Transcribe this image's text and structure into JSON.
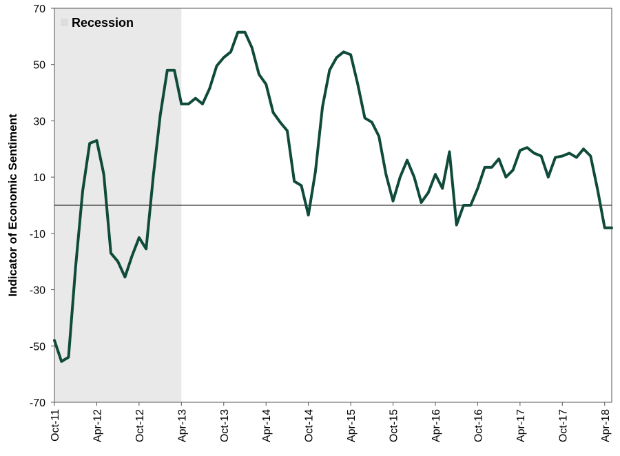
{
  "chart_data": {
    "type": "line",
    "ylabel": "Indicator of Economic Sentiment",
    "xlabel": "",
    "ylim": [
      -70,
      70
    ],
    "yticks": [
      -70,
      -50,
      -30,
      -10,
      10,
      30,
      50,
      70
    ],
    "x_tick_labels": [
      "Oct-11",
      "Apr-12",
      "Oct-12",
      "Apr-13",
      "Oct-13",
      "Apr-14",
      "Oct-14",
      "Apr-15",
      "Oct-15",
      "Apr-16",
      "Oct-16",
      "Apr-17",
      "Oct-17",
      "Apr-18"
    ],
    "x": [
      "Oct-11",
      "Nov-11",
      "Dec-11",
      "Jan-12",
      "Feb-12",
      "Mar-12",
      "Apr-12",
      "May-12",
      "Jun-12",
      "Jul-12",
      "Aug-12",
      "Sep-12",
      "Oct-12",
      "Nov-12",
      "Dec-12",
      "Jan-13",
      "Feb-13",
      "Mar-13",
      "Apr-13",
      "May-13",
      "Jun-13",
      "Jul-13",
      "Aug-13",
      "Sep-13",
      "Oct-13",
      "Nov-13",
      "Dec-13",
      "Jan-14",
      "Feb-14",
      "Mar-14",
      "Apr-14",
      "May-14",
      "Jun-14",
      "Jul-14",
      "Aug-14",
      "Sep-14",
      "Oct-14",
      "Nov-14",
      "Dec-14",
      "Jan-15",
      "Feb-15",
      "Mar-15",
      "Apr-15",
      "May-15",
      "Jun-15",
      "Jul-15",
      "Aug-15",
      "Sep-15",
      "Oct-15",
      "Nov-15",
      "Dec-15",
      "Jan-16",
      "Feb-16",
      "Mar-16",
      "Apr-16",
      "May-16",
      "Jun-16",
      "Jul-16",
      "Aug-16",
      "Sep-16",
      "Oct-16",
      "Nov-16",
      "Dec-16",
      "Jan-17",
      "Feb-17",
      "Mar-17",
      "Apr-17",
      "May-17",
      "Jun-17",
      "Jul-17",
      "Aug-17",
      "Sep-17",
      "Oct-17",
      "Nov-17",
      "Dec-17",
      "Jan-18",
      "Feb-18",
      "Mar-18",
      "Apr-18",
      "May-18"
    ],
    "series": [
      {
        "values": [
          -48,
          -55.5,
          -54,
          -22,
          5,
          22,
          23,
          11,
          -17,
          -20,
          -25.5,
          -18,
          -11.5,
          -15.5,
          10,
          32,
          48,
          48,
          36,
          36,
          38,
          36,
          41.5,
          49.5,
          52.5,
          54.5,
          61.5,
          61.5,
          56,
          46.5,
          43,
          33,
          29.5,
          26.5,
          8.5,
          7,
          -3.5,
          12,
          35,
          48,
          52.5,
          54.5,
          53.5,
          43,
          31,
          29.5,
          24.5,
          11,
          1.5,
          10,
          16,
          10,
          1,
          4.5,
          11,
          6,
          19,
          -7,
          0,
          0,
          6,
          13.5,
          13.5,
          16.5,
          10,
          12.5,
          19.5,
          20.5,
          18.5,
          17.5,
          10,
          17,
          17.5,
          18.5,
          17,
          20,
          17.5,
          5.5,
          -8,
          -8
        ]
      }
    ],
    "recession": {
      "label": "Recession",
      "start": "Oct-11",
      "end": "Apr-13"
    },
    "colors": {
      "line": "#0f4a3a",
      "recession": "#e8e9e8",
      "axis": "#000000"
    },
    "legend": "top-left",
    "grid": false
  }
}
